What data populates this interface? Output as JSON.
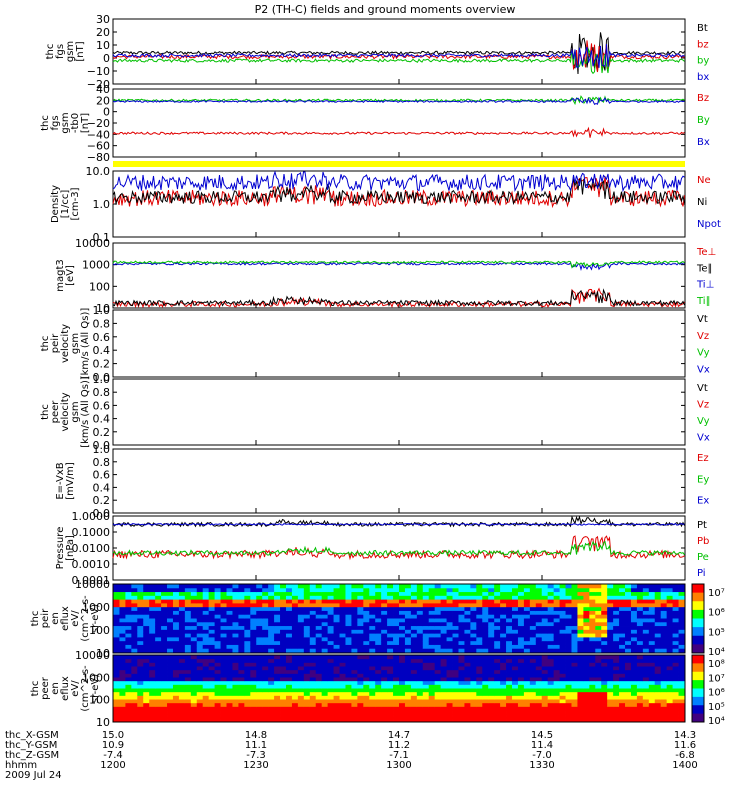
{
  "title": "P2 (TH-C) fields and ground moments overview",
  "colors": {
    "black": "#000000",
    "red": "#e00000",
    "green": "#00c000",
    "blue": "#0000d0",
    "yellow": "#ffff00"
  },
  "chart_data": [
    {
      "id": "p1",
      "type": "line",
      "ylabel": [
        "thc",
        "fgs",
        "gsm",
        "[nT]"
      ],
      "yticks": [
        "30",
        "20",
        "10",
        "0",
        "−10",
        "−20"
      ],
      "series": [
        {
          "name": "Bt",
          "color": "black",
          "base": 4,
          "noise": 1.2,
          "burst": 16
        },
        {
          "name": "bz",
          "color": "red",
          "base": 1,
          "noise": 1.5,
          "burst": 14
        },
        {
          "name": "by",
          "color": "green",
          "base": -2,
          "noise": 1.2,
          "burst": 10
        },
        {
          "name": "bx",
          "color": "blue",
          "base": 2,
          "noise": 1.2,
          "burst": 10
        }
      ]
    },
    {
      "id": "p2",
      "type": "line",
      "ylabel": [
        "thc",
        "fgs",
        "gsm",
        "-tb0",
        "[nT]"
      ],
      "yticks": [
        "40",
        "20",
        "0",
        "−20",
        "−40",
        "−60",
        "−80"
      ],
      "series": [
        {
          "name": "Bz",
          "color": "red",
          "base": -38,
          "noise": 2,
          "burst": 8
        },
        {
          "name": "By",
          "color": "green",
          "base": 20,
          "noise": 2,
          "burst": 6
        },
        {
          "name": "Bx",
          "color": "blue",
          "base": 18,
          "noise": 1.5,
          "burst": 6
        }
      ]
    },
    {
      "id": "p3",
      "type": "line",
      "ylog": true,
      "ylabel": [
        "Density",
        "[1/cc]",
        "[cm-3]"
      ],
      "yticks": [
        "10.0",
        "1.0",
        "0.1"
      ],
      "series": [
        {
          "name": "Ne",
          "color": "red",
          "base": 1.5,
          "noise": 0.25,
          "burst": 5
        },
        {
          "name": "Ni",
          "color": "black",
          "base": 1.6,
          "noise": 0.2,
          "burst": 4
        },
        {
          "name": "Npot",
          "color": "blue",
          "base": 4.5,
          "noise": 0.25,
          "burst": 2
        }
      ]
    },
    {
      "id": "p4",
      "type": "line",
      "ylog": true,
      "ylabel": [
        "magt3",
        "[eV]"
      ],
      "yticks": [
        "10000",
        "1000",
        "100",
        "10"
      ],
      "series": [
        {
          "name": "Te⊥",
          "color": "red",
          "base": 15,
          "noise": 0.12,
          "burst": 60
        },
        {
          "name": "Te∥",
          "color": "black",
          "base": 17,
          "noise": 0.12,
          "burst": 50
        },
        {
          "name": "Ti⊥",
          "color": "blue",
          "base": 1100,
          "noise": 0.05,
          "burst": -600
        },
        {
          "name": "Ti∥",
          "color": "green",
          "base": 1300,
          "noise": 0.05,
          "burst": -600
        }
      ]
    },
    {
      "id": "p5",
      "type": "line",
      "ylabel": [
        "thc",
        "peir",
        "velocity",
        "gsm",
        "[km/s (All Qs)]"
      ],
      "yticks": [
        "1.0",
        "0.8",
        "0.6",
        "0.4",
        "0.2",
        "0.0"
      ],
      "series": [
        {
          "name": "Vt",
          "color": "black"
        },
        {
          "name": "Vz",
          "color": "red"
        },
        {
          "name": "Vy",
          "color": "green"
        },
        {
          "name": "Vx",
          "color": "blue"
        }
      ]
    },
    {
      "id": "p6",
      "type": "line",
      "ylabel": [
        "thc",
        "peer",
        "velocity",
        "gsm",
        "[km/s (All Qs)]"
      ],
      "yticks": [
        "1.0",
        "0.8",
        "0.6",
        "0.4",
        "0.2",
        "0.0"
      ],
      "series": [
        {
          "name": "Vt",
          "color": "black"
        },
        {
          "name": "Vz",
          "color": "red"
        },
        {
          "name": "Vy",
          "color": "green"
        },
        {
          "name": "Vx",
          "color": "blue"
        }
      ]
    },
    {
      "id": "p7",
      "type": "line",
      "ylabel": [
        "E=-VxB",
        "[mV/m]"
      ],
      "yticks": [
        "1.0",
        "0.8",
        "0.6",
        "0.4",
        "0.2",
        "0.0"
      ],
      "series": [
        {
          "name": "Ez",
          "color": "red"
        },
        {
          "name": "Ey",
          "color": "green"
        },
        {
          "name": "Ex",
          "color": "blue"
        }
      ]
    },
    {
      "id": "p8",
      "type": "line",
      "ylog": true,
      "ylabel": [
        "Pressure",
        "[nPa]"
      ],
      "yticks": [
        "1.0000",
        "0.1000",
        "0.0100",
        "0.0010",
        "0.0001"
      ],
      "series": [
        {
          "name": "Pt",
          "color": "black",
          "base": 0.3,
          "noise": 0.12,
          "burst": 0.6
        },
        {
          "name": "Pb",
          "color": "red",
          "base": 0.004,
          "noise": 0.25,
          "burst": 0.05
        },
        {
          "name": "Pe",
          "color": "green",
          "base": 0.005,
          "noise": 0.15,
          "burst": 0.02
        },
        {
          "name": "Pi",
          "color": "blue",
          "base": 0.3,
          "noise": 0.05,
          "burst": 0
        }
      ]
    },
    {
      "id": "p9",
      "type": "heatmap",
      "ylabel": [
        "thc",
        "peir",
        "en",
        "eflux",
        "eV/",
        "(cm^2-s-",
        "sr-eV)"
      ],
      "yticks": [
        "10000",
        "1000",
        "100",
        "10"
      ],
      "colorbar": [
        "10⁷",
        "10⁶",
        "10⁵",
        "10⁴"
      ]
    },
    {
      "id": "p10",
      "type": "heatmap",
      "ylabel": [
        "thc",
        "peer",
        "en",
        "eflux",
        "eV/",
        "(cm^2-s-",
        "sr-eV)"
      ],
      "yticks": [
        "10000",
        "1000",
        "100",
        "10"
      ],
      "colorbar": [
        "10⁸",
        "10⁷",
        "10⁶",
        "10⁵",
        "10⁴"
      ]
    }
  ],
  "xaxis": {
    "rows": [
      {
        "label": "thc_X-GSM",
        "values": [
          "15.0",
          "14.8",
          "14.7",
          "14.5",
          "14.3"
        ]
      },
      {
        "label": "thc_Y-GSM",
        "values": [
          "10.9",
          "11.1",
          "11.2",
          "11.4",
          "11.6"
        ]
      },
      {
        "label": "thc_Z-GSM",
        "values": [
          "-7.4",
          "-7.3",
          "-7.1",
          "-7.0",
          "-6.8"
        ]
      },
      {
        "label": "hhmm",
        "values": [
          "1200",
          "1230",
          "1300",
          "1330",
          "1400"
        ]
      }
    ],
    "date": "2009 Jul 24"
  }
}
